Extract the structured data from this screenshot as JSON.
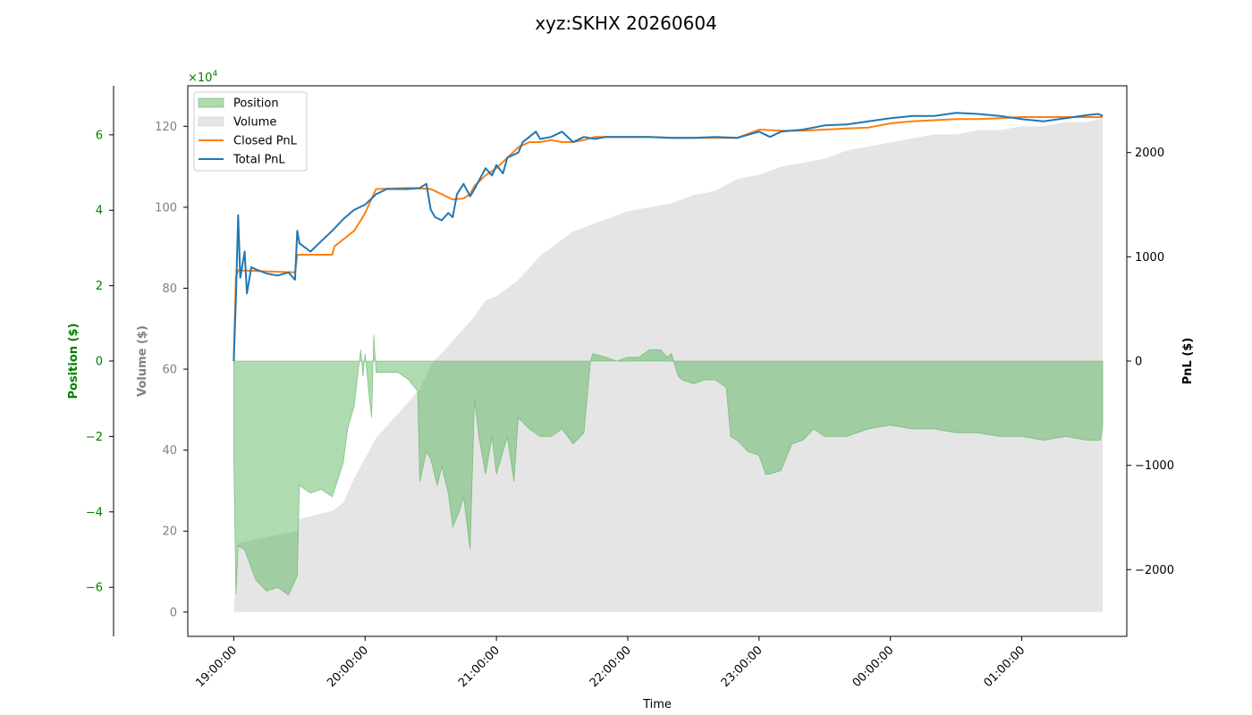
{
  "chart_data": {
    "type": "area",
    "title": "xyz:SKHX 20260604",
    "xlabel": "Time",
    "x_ticks": [
      "19:00:00",
      "20:00:00",
      "21:00:00",
      "22:00:00",
      "23:00:00",
      "00:00:00",
      "01:00:00"
    ],
    "x_range": [
      "18:39",
      "01:48"
    ],
    "grid": false,
    "legend_position": "upper-left",
    "axes": {
      "position": {
        "label": "Position ($)",
        "ticks": [
          -6,
          -4,
          -2,
          0,
          2,
          4,
          6
        ],
        "tick_labels": [
          "−6",
          "−4",
          "−2",
          "0",
          "2",
          "4",
          "6"
        ],
        "range": [
          -7.3,
          7.3
        ],
        "multiplier": "×10",
        "multiplier_exp": "4",
        "color": "#008000"
      },
      "volume": {
        "label": "Volume ($)",
        "ticks": [
          0,
          20,
          40,
          60,
          80,
          100,
          120
        ],
        "tick_labels": [
          "0",
          "20",
          "40",
          "60",
          "80",
          "100",
          "120"
        ],
        "range": [
          -6,
          130
        ],
        "color": "#808080"
      },
      "pnl": {
        "label": "PnL ($)",
        "ticks": [
          -2000,
          -1000,
          0,
          1000,
          2000
        ],
        "tick_labels": [
          "−2000",
          "−1000",
          "0",
          "1000",
          "2000"
        ],
        "range": [
          -2640,
          2640
        ],
        "color": "#000000"
      }
    },
    "series": [
      {
        "name": "Position",
        "axis": "position",
        "style": "fill",
        "color": "#4caf50",
        "x": [
          "19:00",
          "19:01",
          "19:02",
          "19:05",
          "19:10",
          "19:15",
          "19:20",
          "19:25",
          "19:29",
          "19:30",
          "19:35",
          "19:40",
          "19:45",
          "19:50",
          "19:52",
          "19:55",
          "19:58",
          "19:59",
          "20:00",
          "20:02",
          "20:03",
          "20:04",
          "20:05",
          "20:10",
          "20:15",
          "20:20",
          "20:24",
          "20:25",
          "20:28",
          "20:30",
          "20:33",
          "20:35",
          "20:38",
          "20:40",
          "20:43",
          "20:45",
          "20:48",
          "20:50",
          "20:52",
          "20:55",
          "20:58",
          "21:00",
          "21:05",
          "21:08",
          "21:10",
          "21:15",
          "21:20",
          "21:25",
          "21:30",
          "21:35",
          "21:40",
          "21:43",
          "21:44",
          "21:50",
          "21:55",
          "22:00",
          "22:05",
          "22:10",
          "22:15",
          "22:18",
          "22:20",
          "22:23",
          "22:25",
          "22:30",
          "22:35",
          "22:40",
          "22:45",
          "22:47",
          "22:50",
          "22:55",
          "23:00",
          "23:03",
          "23:05",
          "23:10",
          "23:15",
          "23:20",
          "23:25",
          "23:30",
          "23:40",
          "23:50",
          "00:00",
          "00:10",
          "00:20",
          "00:30",
          "00:40",
          "00:50",
          "01:00",
          "01:10",
          "01:20",
          "01:30",
          "01:36",
          "01:37"
        ],
        "values": [
          -2.5,
          -6.2,
          -4.9,
          -5.0,
          -5.8,
          -6.1,
          -6.0,
          -6.2,
          -5.7,
          -3.3,
          -3.5,
          -3.4,
          -3.6,
          -2.7,
          -1.8,
          -1.2,
          0.3,
          -0.4,
          0.2,
          -1.0,
          -1.5,
          0.7,
          -0.3,
          -0.3,
          -0.3,
          -0.5,
          -0.8,
          -3.2,
          -2.4,
          -2.6,
          -3.3,
          -2.8,
          -3.5,
          -4.4,
          -4.0,
          -3.6,
          -5.0,
          -1.0,
          -2.0,
          -3.0,
          -2.0,
          -3.0,
          -2.0,
          -3.2,
          -1.5,
          -1.8,
          -2.0,
          -2.0,
          -1.8,
          -2.2,
          -1.9,
          0,
          0.2,
          0.1,
          0.0,
          0.1,
          0.1,
          0.3,
          0.3,
          0.1,
          0.2,
          -0.4,
          -0.5,
          -0.6,
          -0.5,
          -0.5,
          -0.7,
          -2.0,
          -2.1,
          -2.4,
          -2.5,
          -3.0,
          -3.0,
          -2.9,
          -2.2,
          -2.1,
          -1.8,
          -2.0,
          -2.0,
          -1.8,
          -1.7,
          -1.8,
          -1.8,
          -1.9,
          -1.9,
          -2.0,
          -2.0,
          -2.1,
          -2.0,
          -2.1,
          -2.1,
          -1.7
        ]
      },
      {
        "name": "Volume",
        "axis": "volume",
        "style": "fill",
        "color": "#cccccc",
        "x": [
          "19:00",
          "19:01",
          "19:02",
          "19:29",
          "19:30",
          "19:45",
          "19:50",
          "19:55",
          "20:00",
          "20:05",
          "20:10",
          "20:15",
          "20:20",
          "20:25",
          "20:30",
          "20:35",
          "20:40",
          "20:45",
          "20:50",
          "20:55",
          "21:00",
          "21:05",
          "21:10",
          "21:15",
          "21:20",
          "21:25",
          "21:30",
          "21:35",
          "21:40",
          "21:45",
          "21:50",
          "21:55",
          "22:00",
          "22:10",
          "22:20",
          "22:30",
          "22:40",
          "22:50",
          "23:00",
          "23:10",
          "23:20",
          "23:30",
          "23:40",
          "23:50",
          "00:00",
          "00:10",
          "00:20",
          "00:30",
          "00:40",
          "00:50",
          "01:00",
          "01:10",
          "01:20",
          "01:30",
          "01:37"
        ],
        "values": [
          0,
          8,
          17,
          20,
          23,
          25,
          27,
          33,
          38,
          43,
          46,
          49,
          52,
          55,
          61,
          64,
          67,
          70,
          73,
          77,
          78,
          80,
          82,
          85,
          88,
          90,
          92,
          94,
          95,
          96,
          97,
          98,
          99,
          100,
          101,
          103,
          104,
          107,
          108,
          110,
          111,
          112,
          114,
          115,
          116,
          117,
          118,
          118,
          119,
          119,
          120,
          120,
          121,
          121,
          122
        ]
      },
      {
        "name": "Closed PnL",
        "axis": "pnl",
        "style": "line",
        "color": "#ff7f0e",
        "x": [
          "19:00",
          "19:01",
          "19:02",
          "19:28",
          "19:29",
          "19:45",
          "19:46",
          "19:55",
          "19:58",
          "20:00",
          "20:05",
          "20:20",
          "20:30",
          "20:35",
          "20:40",
          "20:45",
          "20:48",
          "20:50",
          "20:55",
          "21:00",
          "21:05",
          "21:10",
          "21:15",
          "21:20",
          "21:25",
          "21:30",
          "21:35",
          "21:40",
          "21:45",
          "22:00",
          "22:10",
          "22:20",
          "22:30",
          "22:40",
          "22:50",
          "23:00",
          "23:10",
          "23:20",
          "23:30",
          "23:40",
          "23:50",
          "00:00",
          "00:10",
          "00:20",
          "00:30",
          "00:40",
          "00:50",
          "01:00",
          "01:10",
          "01:20",
          "01:30",
          "01:37"
        ],
        "values": [
          0,
          800,
          870,
          850,
          1020,
          1020,
          1100,
          1250,
          1350,
          1420,
          1650,
          1660,
          1650,
          1600,
          1550,
          1560,
          1600,
          1680,
          1780,
          1850,
          1950,
          2050,
          2100,
          2100,
          2120,
          2100,
          2100,
          2120,
          2150,
          2150,
          2150,
          2140,
          2140,
          2140,
          2140,
          2220,
          2210,
          2210,
          2220,
          2230,
          2240,
          2280,
          2300,
          2310,
          2320,
          2320,
          2330,
          2340,
          2340,
          2340,
          2340,
          2340
        ]
      },
      {
        "name": "Total PnL",
        "axis": "pnl",
        "style": "line",
        "color": "#1f77b4",
        "x": [
          "19:00",
          "19:01",
          "19:02",
          "19:03",
          "19:05",
          "19:06",
          "19:08",
          "19:10",
          "19:15",
          "19:20",
          "19:25",
          "19:28",
          "19:29",
          "19:30",
          "19:35",
          "19:40",
          "19:45",
          "19:50",
          "19:55",
          "20:00",
          "20:05",
          "20:10",
          "20:15",
          "20:20",
          "20:25",
          "20:28",
          "20:30",
          "20:32",
          "20:35",
          "20:38",
          "20:40",
          "20:42",
          "20:45",
          "20:48",
          "20:50",
          "20:55",
          "20:58",
          "21:00",
          "21:03",
          "21:05",
          "21:10",
          "21:12",
          "21:15",
          "21:18",
          "21:20",
          "21:25",
          "21:28",
          "21:30",
          "21:35",
          "21:40",
          "21:45",
          "21:50",
          "22:00",
          "22:10",
          "22:20",
          "22:30",
          "22:40",
          "22:50",
          "23:00",
          "23:05",
          "23:10",
          "23:20",
          "23:30",
          "23:40",
          "23:50",
          "00:00",
          "00:10",
          "00:20",
          "00:30",
          "00:40",
          "00:50",
          "01:00",
          "01:10",
          "01:20",
          "01:30",
          "01:35",
          "01:37"
        ],
        "values": [
          0,
          600,
          1400,
          800,
          1050,
          650,
          900,
          880,
          840,
          820,
          850,
          780,
          1250,
          1130,
          1050,
          1150,
          1250,
          1360,
          1450,
          1500,
          1600,
          1650,
          1650,
          1650,
          1660,
          1700,
          1450,
          1380,
          1350,
          1420,
          1380,
          1600,
          1700,
          1580,
          1650,
          1850,
          1780,
          1880,
          1800,
          1950,
          2000,
          2100,
          2150,
          2200,
          2130,
          2150,
          2180,
          2200,
          2100,
          2150,
          2130,
          2150,
          2150,
          2150,
          2140,
          2140,
          2150,
          2140,
          2200,
          2150,
          2200,
          2220,
          2260,
          2270,
          2300,
          2330,
          2350,
          2350,
          2380,
          2370,
          2350,
          2320,
          2300,
          2330,
          2360,
          2370,
          2350
        ]
      }
    ]
  }
}
